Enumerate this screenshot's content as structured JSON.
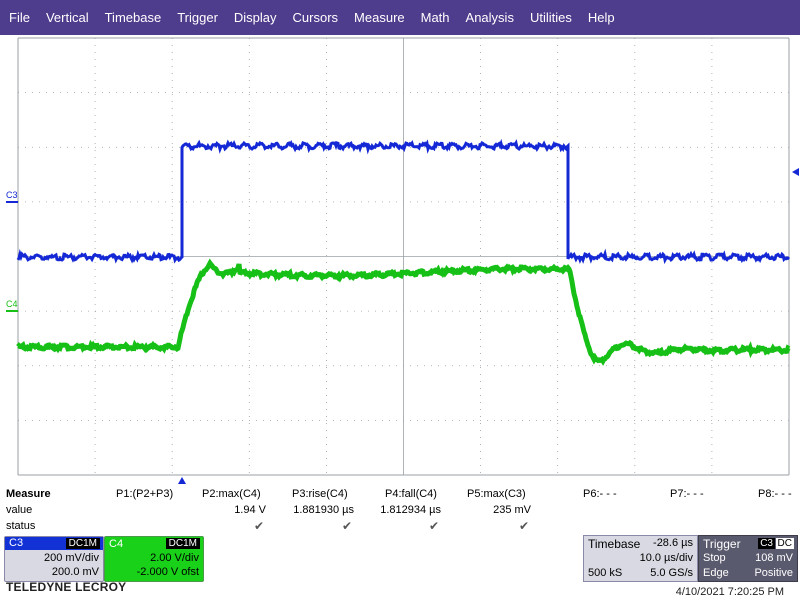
{
  "menu": [
    "File",
    "Vertical",
    "Timebase",
    "Trigger",
    "Display",
    "Cursors",
    "Measure",
    "Math",
    "Analysis",
    "Utilities",
    "Help"
  ],
  "colors": {
    "menu_bg": "#4e3c8c",
    "c3": "#1428d6",
    "c4": "#16c016",
    "grid": "#9aa0a6"
  },
  "channels": {
    "c3_label": "C3",
    "c4_label": "C4"
  },
  "measure": {
    "title": "Measure",
    "row_value": "value",
    "row_status": "status",
    "params": [
      {
        "label": "P1:(P2+P3)",
        "value": "",
        "ok": false
      },
      {
        "label": "P2:max(C4)",
        "value": "1.94 V",
        "ok": true
      },
      {
        "label": "P3:rise(C4)",
        "value": "1.881930 µs",
        "ok": true
      },
      {
        "label": "P4:fall(C4)",
        "value": "1.812934 µs",
        "ok": true
      },
      {
        "label": "P5:max(C3)",
        "value": "235 mV",
        "ok": true
      },
      {
        "label": "P6:- - -",
        "value": "",
        "ok": false
      },
      {
        "label": "P7:- - -",
        "value": "",
        "ok": false
      },
      {
        "label": "P8:- - -",
        "value": "",
        "ok": false
      }
    ],
    "check_glyph": "✔"
  },
  "c3box": {
    "name": "C3",
    "coupling": "DC1M",
    "vdiv": "200 mV/div",
    "offset": "200.0 mV"
  },
  "c4box": {
    "name": "C4",
    "coupling": "DC1M",
    "vdiv": "2.00 V/div",
    "offset": "-2.000 V ofst"
  },
  "timebase": {
    "label": "Timebase",
    "delay": "-28.6 µs",
    "tdiv": "10.0 µs/div",
    "samples": "500 kS",
    "rate": "5.0 GS/s"
  },
  "trigger": {
    "label": "Trigger",
    "source": "C3",
    "coupling": "DC",
    "mode": "Stop",
    "level": "108 mV",
    "type": "Edge",
    "slope": "Positive"
  },
  "logo": "TELEDYNE LECROY",
  "timestamp": "4/10/2021 7:20:25 PM"
}
